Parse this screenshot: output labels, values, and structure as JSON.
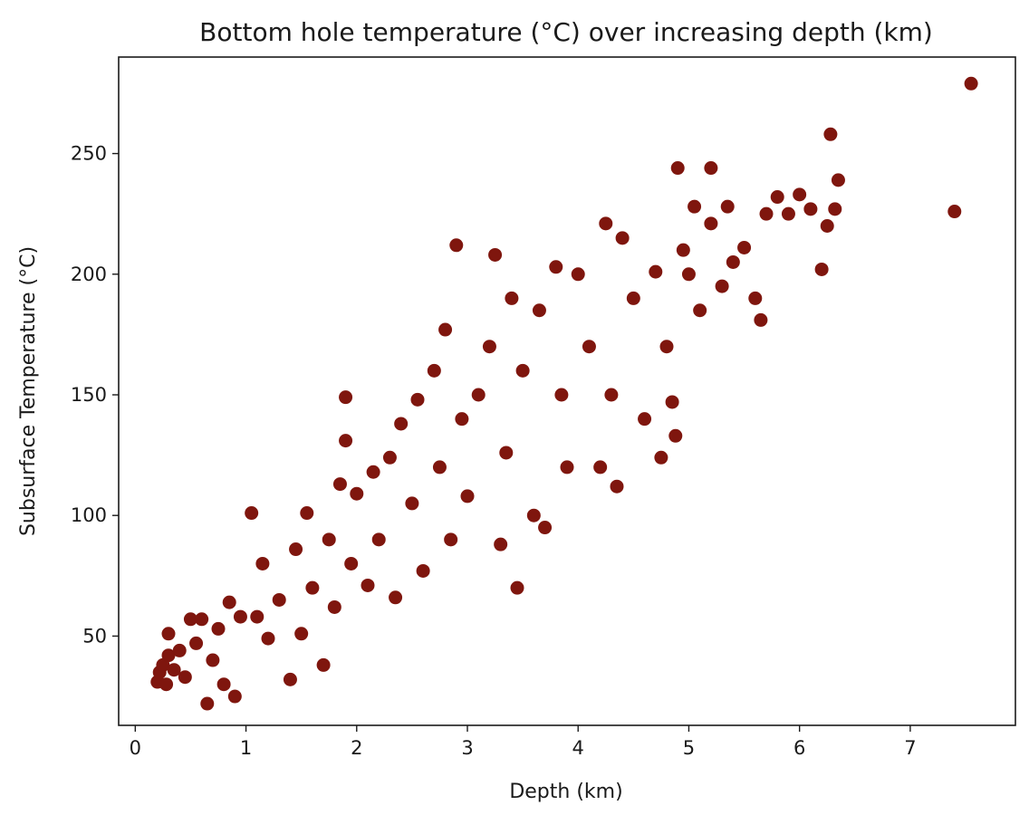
{
  "chart_data": {
    "type": "scatter",
    "title": "Bottom hole temperature (°C) over increasing depth (km)",
    "xlabel": "Depth (km)",
    "ylabel": "Subsurface Temperature (°C)",
    "xlim": [
      -0.15,
      7.95
    ],
    "ylim": [
      13,
      290
    ],
    "xticks": [
      0,
      1,
      2,
      3,
      4,
      5,
      6,
      7
    ],
    "xtick_labels": [
      "0",
      "1",
      "2",
      "3",
      "4",
      "5",
      "6",
      "7"
    ],
    "yticks": [
      50,
      100,
      150,
      200,
      250
    ],
    "ytick_labels": [
      "50",
      "100",
      "150",
      "200",
      "250"
    ],
    "grid": false,
    "legend": "none",
    "marker_color": "#7f160e",
    "series": [
      {
        "name": "",
        "points": [
          [
            0.2,
            31
          ],
          [
            0.22,
            35
          ],
          [
            0.25,
            38
          ],
          [
            0.28,
            30
          ],
          [
            0.3,
            42
          ],
          [
            0.3,
            51
          ],
          [
            0.35,
            36
          ],
          [
            0.4,
            44
          ],
          [
            0.45,
            33
          ],
          [
            0.5,
            57
          ],
          [
            0.55,
            47
          ],
          [
            0.6,
            57
          ],
          [
            0.65,
            22
          ],
          [
            0.7,
            40
          ],
          [
            0.75,
            53
          ],
          [
            0.8,
            30
          ],
          [
            0.85,
            64
          ],
          [
            0.9,
            25
          ],
          [
            0.95,
            58
          ],
          [
            1.05,
            101
          ],
          [
            1.1,
            58
          ],
          [
            1.15,
            80
          ],
          [
            1.2,
            49
          ],
          [
            1.3,
            65
          ],
          [
            1.4,
            32
          ],
          [
            1.45,
            86
          ],
          [
            1.5,
            51
          ],
          [
            1.55,
            101
          ],
          [
            1.6,
            70
          ],
          [
            1.7,
            38
          ],
          [
            1.75,
            90
          ],
          [
            1.8,
            62
          ],
          [
            1.85,
            113
          ],
          [
            1.9,
            149
          ],
          [
            1.9,
            131
          ],
          [
            1.95,
            80
          ],
          [
            2.0,
            109
          ],
          [
            2.1,
            71
          ],
          [
            2.15,
            118
          ],
          [
            2.2,
            90
          ],
          [
            2.3,
            124
          ],
          [
            2.35,
            66
          ],
          [
            2.4,
            138
          ],
          [
            2.5,
            105
          ],
          [
            2.55,
            148
          ],
          [
            2.6,
            77
          ],
          [
            2.7,
            160
          ],
          [
            2.75,
            120
          ],
          [
            2.8,
            177
          ],
          [
            2.85,
            90
          ],
          [
            2.9,
            212
          ],
          [
            2.95,
            140
          ],
          [
            3.0,
            108
          ],
          [
            3.1,
            150
          ],
          [
            3.2,
            170
          ],
          [
            3.25,
            208
          ],
          [
            3.3,
            88
          ],
          [
            3.35,
            126
          ],
          [
            3.4,
            190
          ],
          [
            3.45,
            70
          ],
          [
            3.5,
            160
          ],
          [
            3.6,
            100
          ],
          [
            3.65,
            185
          ],
          [
            3.7,
            95
          ],
          [
            3.8,
            203
          ],
          [
            3.85,
            150
          ],
          [
            3.9,
            120
          ],
          [
            4.0,
            200
          ],
          [
            4.1,
            170
          ],
          [
            4.2,
            120
          ],
          [
            4.25,
            221
          ],
          [
            4.3,
            150
          ],
          [
            4.35,
            112
          ],
          [
            4.4,
            215
          ],
          [
            4.5,
            190
          ],
          [
            4.6,
            140
          ],
          [
            4.7,
            201
          ],
          [
            4.75,
            124
          ],
          [
            4.8,
            170
          ],
          [
            4.85,
            147
          ],
          [
            4.88,
            133
          ],
          [
            4.9,
            244
          ],
          [
            4.95,
            210
          ],
          [
            5.0,
            200
          ],
          [
            5.05,
            228
          ],
          [
            5.1,
            185
          ],
          [
            5.2,
            244
          ],
          [
            5.2,
            221
          ],
          [
            5.3,
            195
          ],
          [
            5.35,
            228
          ],
          [
            5.4,
            205
          ],
          [
            5.5,
            211
          ],
          [
            5.6,
            190
          ],
          [
            5.65,
            181
          ],
          [
            5.7,
            225
          ],
          [
            5.8,
            232
          ],
          [
            5.9,
            225
          ],
          [
            6.0,
            233
          ],
          [
            6.1,
            227
          ],
          [
            6.2,
            202
          ],
          [
            6.25,
            220
          ],
          [
            6.28,
            258
          ],
          [
            6.32,
            227
          ],
          [
            6.35,
            239
          ],
          [
            7.4,
            226
          ],
          [
            7.55,
            279
          ]
        ]
      }
    ]
  }
}
